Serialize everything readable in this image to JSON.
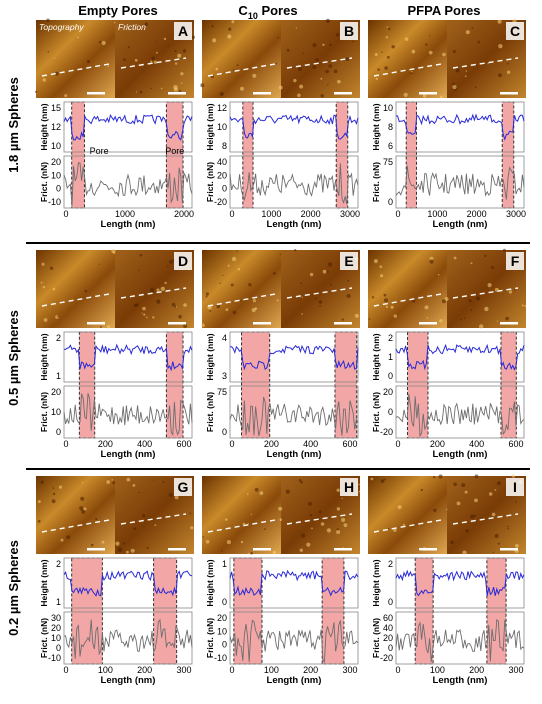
{
  "columns": [
    {
      "title": "Empty Pores"
    },
    {
      "title_main": "C",
      "title_sub": "10",
      "title_rest": " Pores"
    },
    {
      "title": "PFPA Pores"
    }
  ],
  "rows": [
    {
      "title": "1.8 µm Spheres"
    },
    {
      "title": "0.5 µm Spheres"
    },
    {
      "title": "0.2 µm Spheres"
    }
  ],
  "image_labels": {
    "topography": "Topography",
    "friction": "Friction",
    "pore": "Pore"
  },
  "panels": [
    {
      "letter": "A",
      "height_ticks": [
        "15",
        "12",
        "10"
      ],
      "friction_ticks": [
        "20",
        "10",
        "0",
        "-10"
      ],
      "x_ticks": [
        "0",
        "1000",
        "2000"
      ]
    },
    {
      "letter": "B",
      "height_ticks": [
        "12",
        "10",
        "8"
      ],
      "friction_ticks": [
        "40",
        "20",
        "0",
        "-20"
      ],
      "x_ticks": [
        "0",
        "1000",
        "2000",
        "3000"
      ]
    },
    {
      "letter": "C",
      "height_ticks": [
        "10",
        "8",
        "6"
      ],
      "friction_ticks": [
        "75",
        "0"
      ],
      "x_ticks": [
        "0",
        "1000",
        "2000",
        "3000"
      ]
    },
    {
      "letter": "D",
      "height_ticks": [
        "2",
        "1"
      ],
      "friction_ticks": [
        "20",
        "10",
        "0"
      ],
      "x_ticks": [
        "0",
        "200",
        "400",
        "600"
      ]
    },
    {
      "letter": "E",
      "height_ticks": [
        "4",
        "3"
      ],
      "friction_ticks": [
        "75",
        "0"
      ],
      "x_ticks": [
        "0",
        "200",
        "400",
        "600"
      ]
    },
    {
      "letter": "F",
      "height_ticks": [
        "2",
        "1",
        "0"
      ],
      "friction_ticks": [
        "20",
        "0",
        "-20"
      ],
      "x_ticks": [
        "0",
        "200",
        "400",
        "600"
      ]
    },
    {
      "letter": "G",
      "height_ticks": [
        "2",
        "1"
      ],
      "friction_ticks": [
        "30",
        "20",
        "10",
        "0",
        "-10"
      ],
      "x_ticks": [
        "0",
        "100",
        "200",
        "300"
      ]
    },
    {
      "letter": "H",
      "height_ticks": [
        "1",
        "0"
      ],
      "friction_ticks": [
        "20",
        "10",
        "0",
        "-10"
      ],
      "x_ticks": [
        "0",
        "100",
        "200",
        "300"
      ]
    },
    {
      "letter": "I",
      "height_ticks": [
        "2",
        "0"
      ],
      "friction_ticks": [
        "60",
        "40",
        "20",
        "0",
        "-20"
      ],
      "x_ticks": [
        "0",
        "100",
        "200",
        "300"
      ]
    }
  ],
  "axis_labels": {
    "height": "Height (nm)",
    "friction": "Frict. (nN)",
    "length": "Length (nm)"
  },
  "colors": {
    "topography_dark": "#5a2a00",
    "topography_light": "#f0c060",
    "height_line": "#2a2ad8",
    "friction_line": "#6e6e6e",
    "pore_fill": "#f2a6a6",
    "divider": "#000000"
  }
}
